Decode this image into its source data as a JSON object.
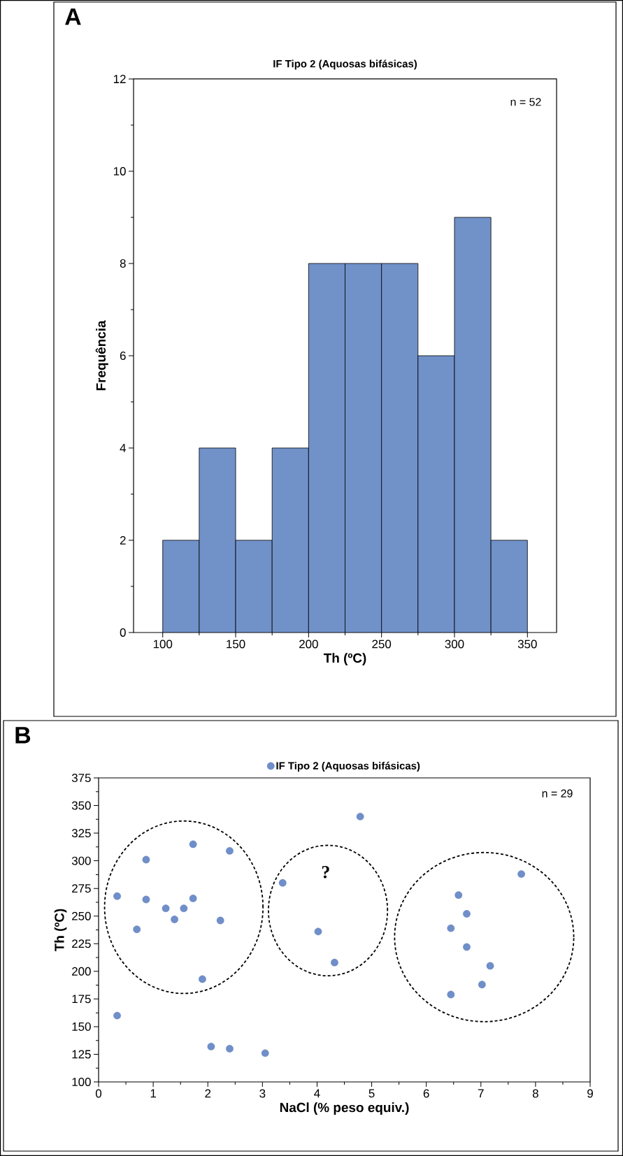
{
  "chart_data": [
    {
      "type": "histogram",
      "title": "IF Tipo 2 (Aquosas bifásicas)",
      "xlabel": "Th (ºC)",
      "ylabel": "Frequência",
      "bins": [
        100,
        125,
        150,
        175,
        200,
        225,
        250,
        275,
        300,
        325,
        350
      ],
      "values": [
        2,
        4,
        2,
        4,
        8,
        8,
        8,
        6,
        9,
        2
      ],
      "color": "#7191c9",
      "xlim": [
        80,
        370
      ],
      "ylim": [
        0,
        12
      ],
      "xticks": [
        100,
        150,
        200,
        250,
        300,
        350
      ],
      "yticks": [
        0,
        2,
        4,
        6,
        8,
        10,
        12
      ],
      "grid": false,
      "annotations": [
        "A",
        "n = 52"
      ]
    },
    {
      "type": "scatter",
      "xlabel": "NaCl (% peso equiv.)",
      "ylabel": "Th (ºC)",
      "marker": "circle",
      "legend": "top",
      "grid": false,
      "series": [
        {
          "name": "IF Tipo 2 (Aquosas bifásicas)",
          "color": "#6f8fca",
          "x": [
            0.34,
            0.87,
            0.87,
            0.7,
            1.23,
            1.39,
            1.56,
            1.73,
            1.73,
            2.23,
            2.4,
            1.9,
            0.34,
            2.06,
            2.4,
            3.05,
            3.37,
            4.02,
            4.32,
            4.79,
            6.59,
            6.74,
            6.45,
            6.74,
            7.17,
            7.02,
            6.45,
            7.74
          ],
          "values": [
            268,
            301,
            265,
            238,
            257,
            247,
            257,
            315,
            266,
            246,
            309,
            193,
            160,
            132,
            130,
            126,
            280,
            236,
            208,
            340,
            269,
            252,
            239,
            222,
            205,
            188,
            179,
            288
          ]
        }
      ],
      "xlim": [
        0,
        9
      ],
      "ylim": [
        100,
        375
      ],
      "xticks": [
        0,
        1,
        2,
        3,
        4,
        5,
        6,
        7,
        8,
        9
      ],
      "yticks": [
        100,
        125,
        150,
        175,
        200,
        225,
        250,
        275,
        300,
        325,
        350,
        375
      ],
      "annotations": [
        "B",
        "n = 29",
        "?"
      ]
    }
  ]
}
